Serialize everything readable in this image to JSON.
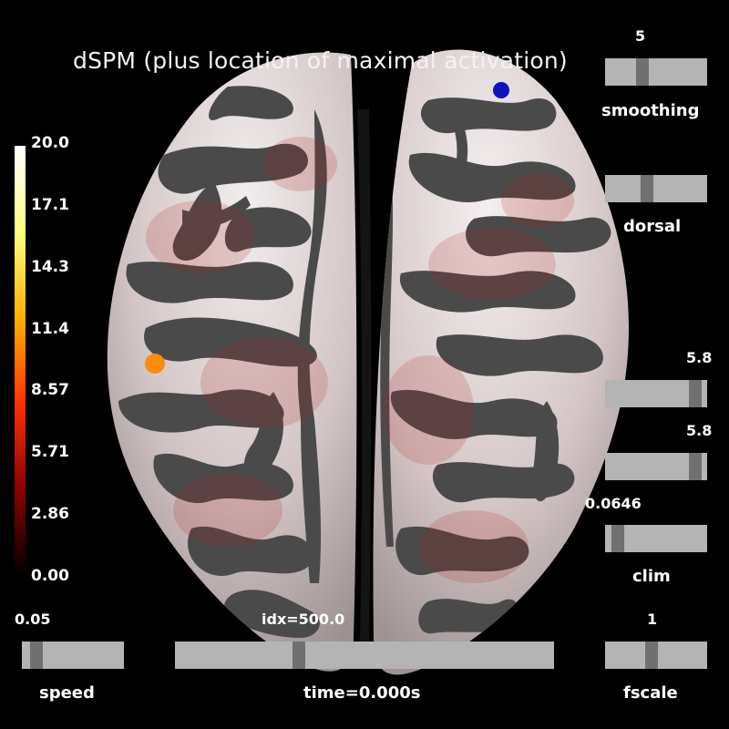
{
  "title": "dSPM (plus location of maximal activation)",
  "colorbar": {
    "ticks": [
      "20.0",
      "17.1",
      "14.3",
      "11.4",
      "8.57",
      "5.71",
      "2.86",
      "0.00"
    ],
    "colors": [
      "#000000",
      "#8b0000",
      "#ff3000",
      "#ffb000",
      "#ffff80",
      "#ffffff"
    ]
  },
  "markers": {
    "left_hemisphere_color": "#ff8a10",
    "right_hemisphere_color": "#1010c0"
  },
  "sliders": {
    "smoothing": {
      "label": "smoothing",
      "value": "5",
      "fraction": 0.35
    },
    "orientation": {
      "label": "dorsal",
      "fraction": 0.4
    },
    "clim_high": {
      "value": "5.8",
      "fraction": 0.94
    },
    "clim_mid": {
      "value": "5.8",
      "fraction": 0.94
    },
    "clim": {
      "label": "clim",
      "value": "0.0646",
      "fraction": 0.07
    },
    "speed": {
      "label": "speed",
      "value": "0.05",
      "fraction": 0.09
    },
    "time": {
      "label": "time=0.000s",
      "value": "idx=500.0",
      "fraction": 0.32
    },
    "fscale": {
      "label": "fscale",
      "value": "1",
      "fraction": 0.45
    }
  }
}
